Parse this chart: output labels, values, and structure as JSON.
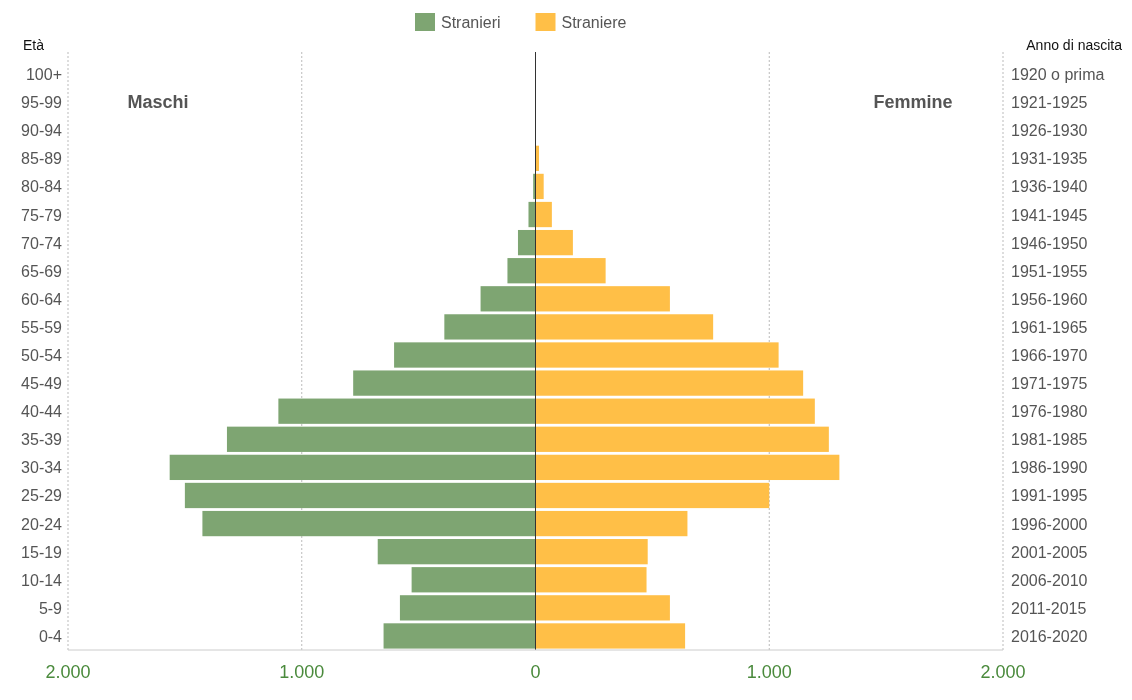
{
  "chart_data": {
    "type": "bar",
    "orientation": "horizontal",
    "ylabel": "Età",
    "y2label": "Anno di nascita",
    "categories": [
      "100+",
      "95-99",
      "90-94",
      "85-89",
      "80-84",
      "75-79",
      "70-74",
      "65-69",
      "60-64",
      "55-59",
      "50-54",
      "45-49",
      "40-44",
      "35-39",
      "30-34",
      "25-29",
      "20-24",
      "15-19",
      "10-14",
      "5-9",
      "0-4"
    ],
    "y2_categories": [
      "1920 o prima",
      "1921-1925",
      "1926-1930",
      "1931-1935",
      "1936-1940",
      "1941-1945",
      "1946-1950",
      "1951-1955",
      "1956-1960",
      "1961-1965",
      "1966-1970",
      "1971-1975",
      "1976-1980",
      "1981-1985",
      "1986-1990",
      "1991-1995",
      "1996-2000",
      "2001-2005",
      "2006-2010",
      "2011-2015",
      "2016-2020"
    ],
    "series": [
      {
        "name": "Stranieri",
        "color": "#7ea572",
        "values": [
          0,
          0,
          0,
          null,
          -10,
          -30,
          -75,
          -120,
          -235,
          -390,
          -605,
          -780,
          -1100,
          -1320,
          -1565,
          -1500,
          -1425,
          -675,
          -530,
          -580,
          -650
        ]
      },
      {
        "name": "Straniere",
        "color": "#ffbf47",
        "values": [
          0,
          0,
          null,
          15,
          35,
          70,
          160,
          300,
          575,
          760,
          1040,
          1145,
          1195,
          1255,
          1300,
          1000,
          650,
          480,
          475,
          575,
          640
        ]
      }
    ],
    "xlim": [
      -2000,
      2000
    ],
    "xticks": [
      {
        "value": -2000,
        "label": "2.000"
      },
      {
        "value": -1000,
        "label": "1.000"
      },
      0,
      {
        "value": 1000,
        "label": "1.000"
      },
      {
        "value": 2000,
        "label": "2.000"
      }
    ],
    "grid": "x",
    "legend": "top",
    "stacked": true,
    "annotations": [
      "Maschi",
      "Femmine"
    ]
  }
}
